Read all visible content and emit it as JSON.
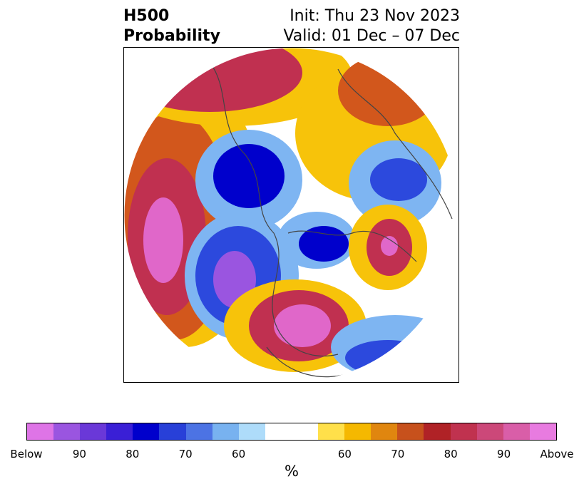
{
  "header": {
    "title_line1": "H500",
    "title_line2": "Probability",
    "init_text": "Init: Thu 23 Nov 2023",
    "valid_text": "Valid: 01 Dec – 07 Dec"
  },
  "map": {
    "projection": "north-polar-stereographic",
    "field": "500 hPa height probability",
    "colors": {
      "below_90": "#9a55e0",
      "below_80": "#3a1fd6",
      "below_70": "#2c49dd",
      "below_60": "#7eb5f2",
      "near_normal": "#ffffff",
      "above_60": "#f7c30a",
      "above_70": "#d2571c",
      "above_80": "#c03050",
      "above_90": "#e067c9",
      "coastline": "#444444"
    }
  },
  "colorbar": {
    "colors": [
      "#de74e6",
      "#9a55e0",
      "#6a38d8",
      "#3a1fd6",
      "#0000cc",
      "#2840d8",
      "#4c73e4",
      "#78b2f0",
      "#aedcfa",
      "#ffffff",
      "#ffffff",
      "#ffe04a",
      "#f5b800",
      "#e0860f",
      "#c7511c",
      "#b02226",
      "#c0324f",
      "#cc4879",
      "#d95ea8",
      "#e87be0"
    ],
    "tick_labels": [
      "Below",
      "90",
      "80",
      "70",
      "60",
      "60",
      "70",
      "80",
      "90",
      "Above"
    ],
    "unit_label": "%"
  }
}
